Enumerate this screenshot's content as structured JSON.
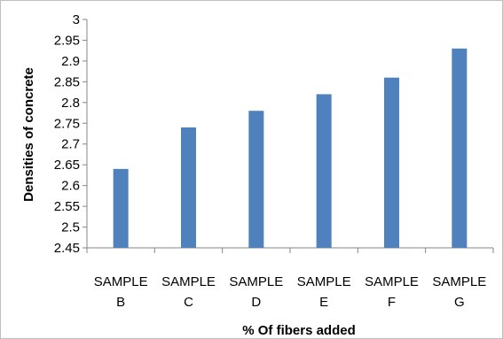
{
  "chart_data": {
    "type": "bar",
    "title": "",
    "categories": [
      [
        "SAMPLE",
        "B"
      ],
      [
        "SAMPLE",
        "C"
      ],
      [
        "SAMPLE",
        "D"
      ],
      [
        "SAMPLE",
        "E"
      ],
      [
        "SAMPLE",
        "F"
      ],
      [
        "SAMPLE",
        "G"
      ]
    ],
    "values": [
      2.64,
      2.74,
      2.78,
      2.82,
      2.86,
      2.93
    ],
    "xlabel": "% Of  fibers added",
    "ylabel": "Densities of concrete",
    "ylim": [
      2.45,
      3.0
    ],
    "yticks": [
      "2.45",
      "2.5",
      "2.55",
      "2.6",
      "2.65",
      "2.7",
      "2.75",
      "2.8",
      "2.85",
      "2.9",
      "2.95",
      "3"
    ],
    "grid": false,
    "legend": "none",
    "bar_color": "#4f81bd",
    "axis_color": "#868686"
  }
}
